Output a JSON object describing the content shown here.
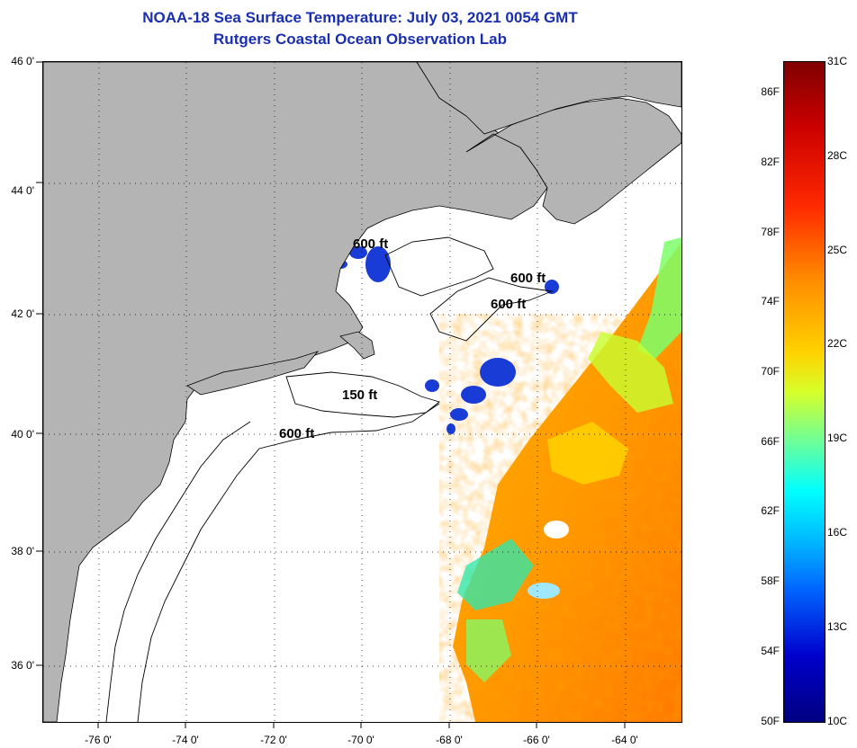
{
  "title": {
    "line1": "NOAA-18 Sea Surface Temperature:  July 03, 2021 0054 GMT",
    "line2": "Rutgers Coastal Ocean Observation Lab"
  },
  "axes": {
    "y_ticks": [
      "46 0'",
      "44 0'",
      "42 0'",
      "40 0'",
      "38 0'",
      "36 0'"
    ],
    "x_ticks": [
      "-76 0'",
      "-74 0'",
      "-72 0'",
      "-70 0'",
      "-68 0'",
      "-66 0'",
      "-64 0'"
    ]
  },
  "contour_labels": [
    "600 ft",
    "600 ft",
    "600 ft",
    "150 ft",
    "600 ft"
  ],
  "colorbar": {
    "fahrenheit": [
      "86F",
      "82F",
      "78F",
      "74F",
      "70F",
      "66F",
      "62F",
      "58F",
      "54F",
      "50F"
    ],
    "celsius": [
      "31C",
      "28C",
      "25C",
      "22C",
      "19C",
      "16C",
      "13C",
      "10C"
    ]
  },
  "colors": {
    "title": "#1a2fb0",
    "land": "#b4b4b4",
    "warm_water": "#ff8c00",
    "cold_water": "#0000cc"
  }
}
